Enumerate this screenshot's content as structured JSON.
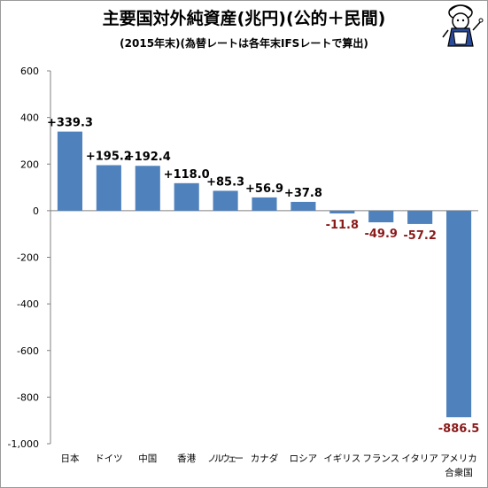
{
  "chart_data": {
    "type": "bar",
    "title": "主要国対外純資産(兆円)(公的＋民間)",
    "subtitle": "(2015年末)(為替レートは各年末IFSレートで算出)",
    "categories": [
      "日本",
      "ドイツ",
      "中国",
      "香港",
      "ノルウェー",
      "カナダ",
      "ロシア",
      "イギリス",
      "フランス",
      "イタリア",
      "アメリカ合衆国"
    ],
    "values": [
      339.3,
      195.2,
      192.4,
      118.0,
      85.3,
      56.9,
      37.8,
      -11.8,
      -49.9,
      -57.2,
      -886.5
    ],
    "data_labels": [
      "+339.3",
      "+195.2",
      "+192.4",
      "+118.0",
      "+85.3",
      "+56.9",
      "+37.8",
      "-11.8",
      "-49.9",
      "-57.2",
      "-886.5"
    ],
    "ylim": [
      -1000,
      600
    ],
    "yticks": [
      -1000,
      -800,
      -600,
      -400,
      -200,
      0,
      200,
      400,
      600
    ],
    "ytick_labels": [
      "-1,000",
      "-800",
      "-600",
      "-400",
      "-200",
      "0",
      "200",
      "400",
      "600"
    ],
    "grid": false,
    "legend": "none",
    "colors": {
      "bar": "#4f81bd",
      "positive_label": "#000000",
      "negative_label": "#8b1a1a"
    }
  }
}
